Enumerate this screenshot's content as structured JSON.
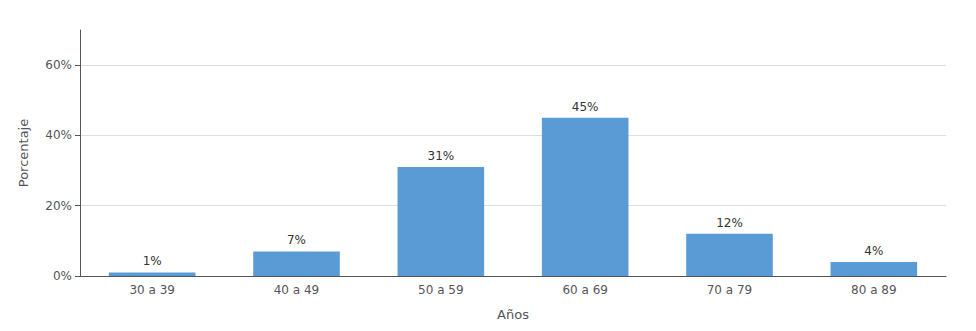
{
  "chart_data": {
    "type": "bar",
    "xlabel": "Años",
    "ylabel": "Porcentaje",
    "categories": [
      "30 a 39",
      "40 a 49",
      "50 a 59",
      "60 a 69",
      "70 a 79",
      "80 a 89"
    ],
    "values": [
      1,
      7,
      31,
      45,
      12,
      4
    ],
    "value_labels": [
      "1%",
      "7%",
      "31%",
      "45%",
      "12%",
      "4%"
    ],
    "data_labels": true,
    "color": "#5b9bd5",
    "ylim": [
      0,
      70
    ],
    "yticks": [
      {
        "value": 0,
        "label": "0%"
      },
      {
        "value": 20,
        "label": "20%"
      },
      {
        "value": 40,
        "label": "40%"
      },
      {
        "value": 60,
        "label": "60%"
      }
    ],
    "grid": true
  }
}
